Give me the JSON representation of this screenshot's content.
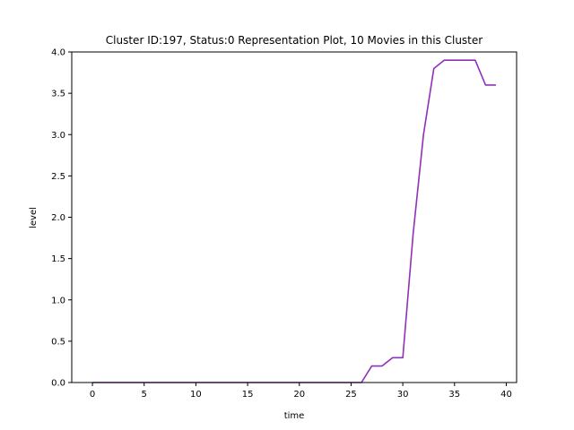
{
  "chart_data": {
    "type": "line",
    "title": "Cluster ID:197, Status:0 Representation Plot, 10 Movies in this Cluster",
    "xlabel": "time",
    "ylabel": "level",
    "xlim": [
      -2,
      41
    ],
    "ylim": [
      0,
      4.0
    ],
    "xticks": [
      0,
      5,
      10,
      15,
      20,
      25,
      30,
      35,
      40
    ],
    "yticks": [
      0.0,
      0.5,
      1.0,
      1.5,
      2.0,
      2.5,
      3.0,
      3.5,
      4.0
    ],
    "xtick_labels": [
      "0",
      "5",
      "10",
      "15",
      "20",
      "25",
      "30",
      "35",
      "40"
    ],
    "ytick_labels": [
      "0.0",
      "0.5",
      "1.0",
      "1.5",
      "2.0",
      "2.5",
      "3.0",
      "3.5",
      "4.0"
    ],
    "grid": false,
    "series": [
      {
        "color": "#9030b8",
        "x": [
          0,
          1,
          2,
          3,
          4,
          5,
          6,
          7,
          8,
          9,
          10,
          11,
          12,
          13,
          14,
          15,
          16,
          17,
          18,
          19,
          20,
          21,
          22,
          23,
          24,
          25,
          26,
          27,
          28,
          29,
          30,
          31,
          32,
          33,
          34,
          35,
          36,
          37,
          38,
          39
        ],
        "values": [
          0,
          0,
          0,
          0,
          0,
          0,
          0,
          0,
          0,
          0,
          0,
          0,
          0,
          0,
          0,
          0,
          0,
          0,
          0,
          0,
          0,
          0,
          0,
          0,
          0,
          0,
          0,
          0.2,
          0.2,
          0.3,
          0.3,
          1.8,
          3.0,
          3.8,
          3.9,
          3.9,
          3.9,
          3.9,
          3.6,
          3.6
        ]
      }
    ]
  }
}
